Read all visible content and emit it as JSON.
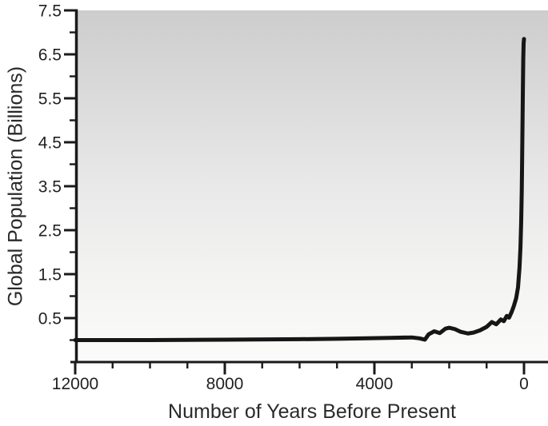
{
  "chart_data": {
    "type": "line",
    "title": "",
    "xlabel": "Number of Years Before Present",
    "ylabel": "Global Population (Billions)",
    "grid": false,
    "legend": false,
    "x_axis": {
      "min": 0,
      "max": 12000,
      "reversed": true,
      "major_tick_values": [
        12000,
        8000,
        4000,
        0
      ],
      "major_tick_labels": [
        "12000",
        "8000",
        "4000",
        "0"
      ],
      "minor_tick_step": 1000
    },
    "y_axis": {
      "min": -0.5,
      "max": 7.5,
      "major_tick_values": [
        0.5,
        1.5,
        2.5,
        3.5,
        4.5,
        5.5,
        6.5,
        7.5
      ],
      "major_tick_labels": [
        "0.5",
        "1.5",
        "2.5",
        "3.5",
        "4.5",
        "5.5",
        "6.5",
        "7.5"
      ],
      "minor_tick_values": [
        0,
        1,
        2,
        3,
        4,
        5,
        6,
        7
      ]
    },
    "series": [
      {
        "name": "Global population",
        "points_bp_billions": [
          [
            12000,
            0.0
          ],
          [
            10000,
            0.0
          ],
          [
            8000,
            0.01
          ],
          [
            6000,
            0.02
          ],
          [
            5000,
            0.03
          ],
          [
            4200,
            0.04
          ],
          [
            3600,
            0.05
          ],
          [
            3000,
            0.06
          ],
          [
            2800,
            0.04
          ],
          [
            2650,
            0.01
          ],
          [
            2550,
            0.13
          ],
          [
            2400,
            0.2
          ],
          [
            2250,
            0.16
          ],
          [
            2100,
            0.26
          ],
          [
            2000,
            0.28
          ],
          [
            1850,
            0.25
          ],
          [
            1700,
            0.19
          ],
          [
            1500,
            0.15
          ],
          [
            1350,
            0.17
          ],
          [
            1180,
            0.22
          ],
          [
            1000,
            0.3
          ],
          [
            860,
            0.41
          ],
          [
            740,
            0.36
          ],
          [
            620,
            0.47
          ],
          [
            540,
            0.43
          ],
          [
            460,
            0.55
          ],
          [
            400,
            0.51
          ],
          [
            330,
            0.64
          ],
          [
            270,
            0.78
          ],
          [
            210,
            0.95
          ],
          [
            160,
            1.2
          ],
          [
            120,
            1.65
          ],
          [
            95,
            2.1
          ],
          [
            75,
            2.7
          ],
          [
            60,
            3.4
          ],
          [
            50,
            4.1
          ],
          [
            40,
            4.9
          ],
          [
            30,
            5.7
          ],
          [
            20,
            6.4
          ],
          [
            10,
            6.75
          ],
          [
            0,
            6.85
          ]
        ]
      }
    ]
  },
  "style": {
    "line_color": "#161616",
    "line_width": 5,
    "axis_color": "#1a1a1a",
    "tick_color": "#231f20",
    "text_color": "#2b2a29",
    "plot_bg_top": "#cccdcc",
    "plot_bg_bottom": "#fbfbfa"
  }
}
